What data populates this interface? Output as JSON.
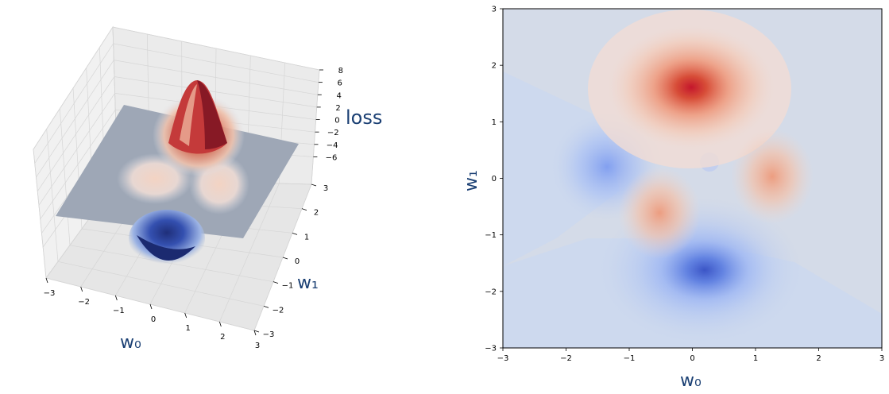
{
  "chart_data": [
    {
      "type": "surface",
      "xlabel": "w₀",
      "ylabel": "w₁",
      "zlabel": "loss",
      "xlim": [
        -3,
        3
      ],
      "ylim": [
        -3,
        3
      ],
      "zlim": [
        -6,
        8
      ],
      "x_ticks": [
        "−3",
        "−2",
        "−1",
        "0",
        "1",
        "2",
        "3"
      ],
      "y_ticks": [
        "−3",
        "−2",
        "−1",
        "0",
        "1",
        "2",
        "3"
      ],
      "z_ticks": [
        "−6",
        "−4",
        "−2",
        "0",
        "2",
        "4",
        "6",
        "8"
      ],
      "colormap": "coolwarm",
      "grid": true
    },
    {
      "type": "contour",
      "xlabel": "w₀",
      "ylabel": "w₁",
      "xlim": [
        -3,
        3
      ],
      "ylim": [
        -3,
        3
      ],
      "x_ticks": [
        "−3",
        "−2",
        "−1",
        "0",
        "1",
        "2",
        "3"
      ],
      "y_ticks": [
        "−3",
        "−2",
        "−1",
        "0",
        "1",
        "2",
        "3"
      ],
      "colormap": "coolwarm",
      "grid": false
    }
  ]
}
